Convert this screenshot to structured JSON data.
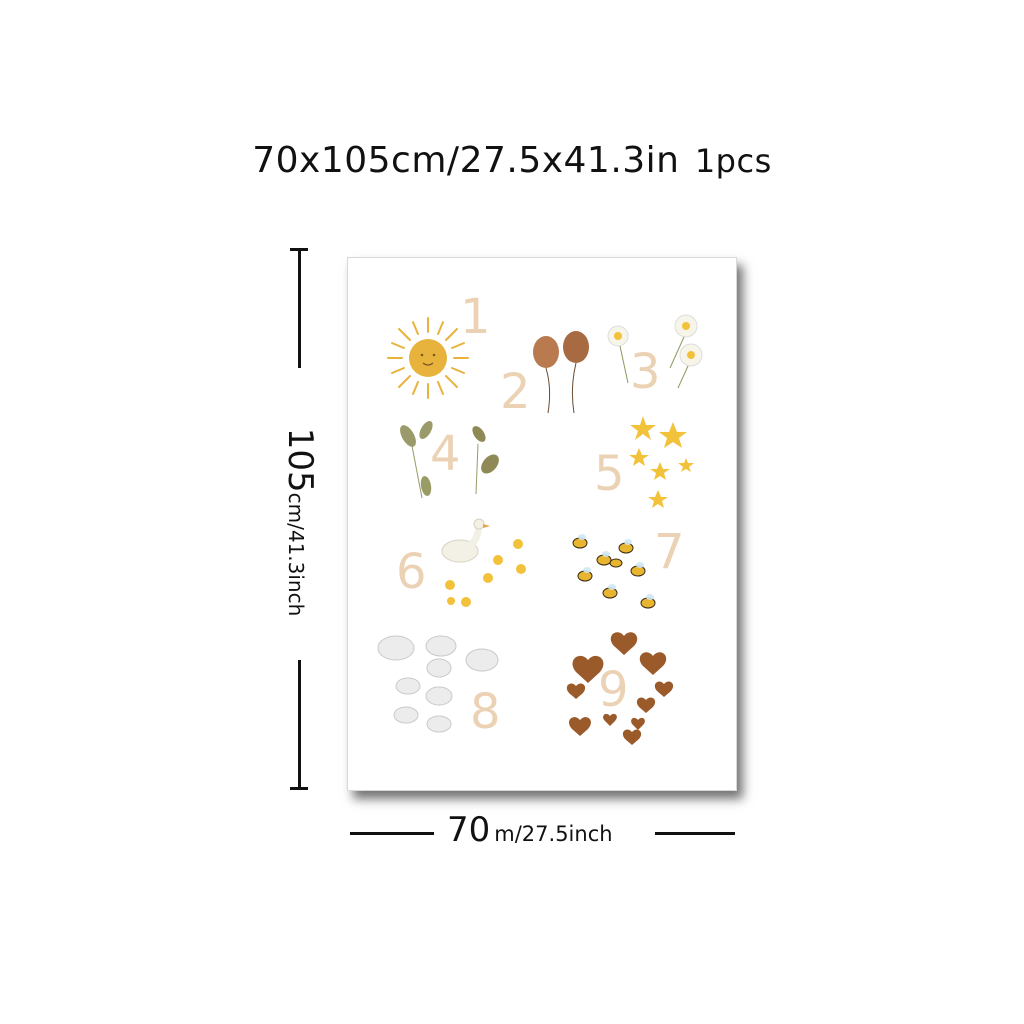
{
  "title": {
    "part1": "70x105cm/",
    "part2": "27.5x41.3in",
    "part3": "1pcs"
  },
  "vertical_dimension": {
    "main": "105",
    "sub": "cm/41.3inch"
  },
  "horizontal_dimension": {
    "main": "70",
    "sub": "m/27.5inch"
  },
  "poster": {
    "numbers": [
      "1",
      "2",
      "3",
      "4",
      "5",
      "6",
      "7",
      "8",
      "9"
    ],
    "colors": {
      "number": "#ecd2b5",
      "sun": "#e8b33c",
      "balloon": "#b97a4f",
      "star": "#f2c23b",
      "leaf": "#9a9a6a",
      "heart": "#9b5a2a",
      "cloud": "#e9e9e9",
      "bee": "#e7b530"
    }
  }
}
